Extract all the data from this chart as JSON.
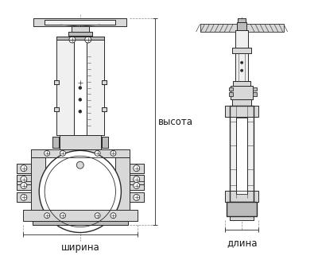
{
  "bg_color": "#ffffff",
  "line_color": "#2a2a2a",
  "line_color2": "#444444",
  "fill_light": "#f0f0f0",
  "fill_mid": "#d8d8d8",
  "fill_dark": "#bbbbbb",
  "dashed_color": "#888888",
  "label_color": "#1a1a1a",
  "label_шир": "ширина",
  "label_дл": "длина",
  "label_выс": "высота",
  "font_size": 8.5,
  "figsize": [
    4.0,
    3.46
  ],
  "dpi": 100
}
